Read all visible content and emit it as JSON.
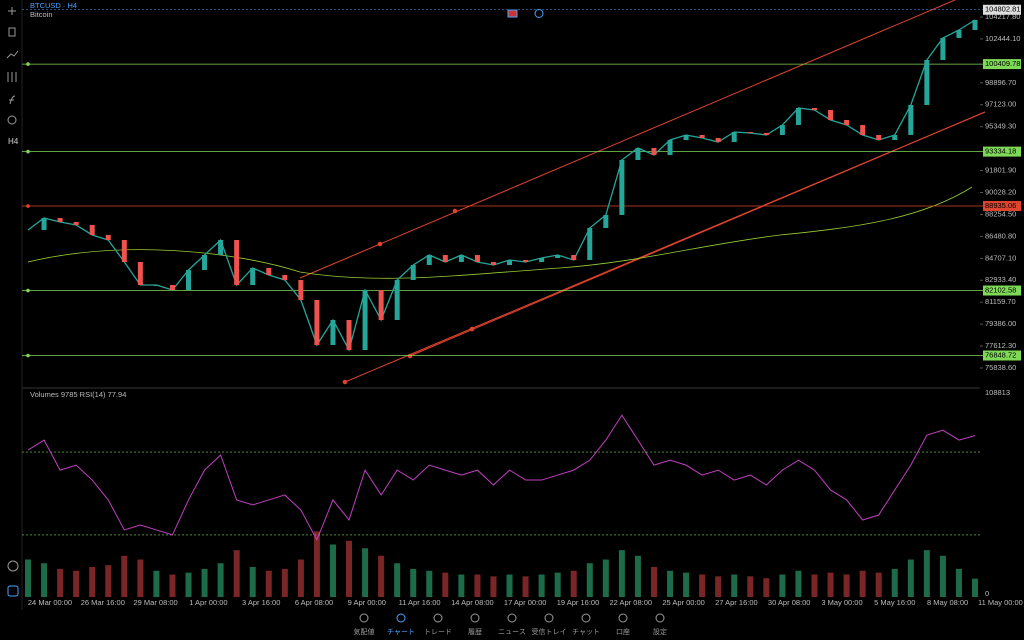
{
  "app": {
    "symbol": "BTCUSD · H4",
    "name": "Bitcoin",
    "sidebar_label": "H4",
    "nav": [
      "気配値",
      "チャート",
      "トレード",
      "履歴",
      "ニュース",
      "受信トレイ",
      "チャット",
      "口座",
      "設定"
    ],
    "active_nav": 1
  },
  "chart_data": {
    "type": "line",
    "color": "#26a69a",
    "xticks": [
      "24 Mar 00:00",
      "26 Mar 16:00",
      "29 Mar 08:00",
      "1 Apr 00:00",
      "3 Apr 16:00",
      "6 Apr 08:00",
      "9 Apr 00:00",
      "11 Apr 16:00",
      "14 Apr 08:00",
      "17 Apr 00:00",
      "19 Apr 16:00",
      "22 Apr 08:00",
      "25 Apr 00:00",
      "27 Apr 16:00",
      "30 Apr 08:00",
      "3 May 00:00",
      "5 May 16:00",
      "8 May 08:00",
      "11 May 00:00"
    ],
    "values": [
      86997,
      87967,
      87644,
      87401,
      86593,
      86188,
      84410,
      82550,
      82550,
      82146,
      83763,
      84976,
      86188,
      82550,
      83925,
      83359,
      82954,
      81337,
      77699,
      79720,
      77295,
      82146,
      79720,
      82954,
      84167,
      84976,
      84410,
      84976,
      84410,
      84167,
      84571,
      84410,
      84733,
      84976,
      84571,
      87159,
      88210,
      92656,
      93627,
      93061,
      94273,
      94678,
      94435,
      94112,
      94920,
      94839,
      94678,
      95486,
      96861,
      96699,
      95890,
      95486,
      94678,
      94273,
      94678,
      97103,
      100741,
      102520,
      103167,
      103975
    ],
    "ylim": [
      74222,
      105592
    ],
    "yticks": [
      {
        "value": 104217.8,
        "label": "104217.80"
      },
      {
        "value": 102444.1,
        "label": "102444.10"
      },
      {
        "value": 98896.7,
        "label": "98896.70"
      },
      {
        "value": 97123.0,
        "label": "97123.00"
      },
      {
        "value": 95349.3,
        "label": "95349.30"
      },
      {
        "value": 91801.9,
        "label": "91801.90"
      },
      {
        "value": 90028.2,
        "label": "90028.20"
      },
      {
        "value": 88254.5,
        "label": "88254.50"
      },
      {
        "value": 86480.8,
        "label": "86480.80"
      },
      {
        "value": 84707.1,
        "label": "84707.10"
      },
      {
        "value": 82933.4,
        "label": "82933.40"
      },
      {
        "value": 81159.7,
        "label": "81159.70"
      },
      {
        "value": 79386.0,
        "label": "79386.00"
      },
      {
        "value": 77612.3,
        "label": "77612.30"
      },
      {
        "value": 75838.6,
        "label": "75838.60"
      }
    ],
    "price_lines": [
      {
        "value": 100409.78,
        "label": "100409.78",
        "color": "#7ed957"
      },
      {
        "value": 93334.18,
        "label": "93334.18",
        "color": "#7ed957"
      },
      {
        "value": 88935.06,
        "label": "88935.06",
        "color": "#e0442e"
      },
      {
        "value": 82102.58,
        "label": "82102.58",
        "color": "#7ed957"
      },
      {
        "value": 76848.72,
        "label": "76848.72",
        "color": "#7ed957"
      }
    ],
    "last_price": {
      "value": 104802.81,
      "label": "104802.81"
    },
    "indicator_title": "Volumes",
    "volume_last": 9785,
    "rsi_title": "RSI(14)",
    "rsi_last": 77.94,
    "rsi_color": "#c040c0",
    "rsi": [
      71.0,
      75.8,
      61.3,
      63.7,
      56.5,
      46.9,
      32.4,
      34.8,
      32.4,
      30.0,
      46.9,
      61.3,
      68.6,
      46.9,
      44.5,
      46.9,
      49.3,
      42.0,
      27.6,
      46.9,
      37.2,
      61.3,
      49.3,
      61.3,
      56.5,
      63.7,
      61.3,
      58.9,
      61.3,
      54.1,
      61.3,
      56.5,
      56.5,
      58.9,
      61.3,
      66.1,
      75.8,
      87.8,
      75.8,
      63.7,
      66.1,
      63.7,
      58.9,
      61.3,
      56.5,
      58.9,
      54.1,
      61.3,
      66.1,
      61.3,
      51.7,
      46.9,
      37.2,
      39.6,
      51.7,
      63.7,
      78.2,
      80.6,
      75.8,
      77.94
    ],
    "rsi_ylim": [
      0,
      100
    ],
    "rsi_levels": [
      70,
      30
    ],
    "volumes": [
      20000,
      18000,
      15000,
      14000,
      16000,
      17000,
      22000,
      20000,
      14000,
      12000,
      13000,
      15000,
      18000,
      25000,
      16000,
      14000,
      15000,
      20000,
      35000,
      28000,
      30000,
      26000,
      22000,
      18000,
      15000,
      14000,
      13000,
      12000,
      12000,
      11000,
      12000,
      11000,
      12000,
      13000,
      14000,
      18000,
      20000,
      25000,
      22000,
      16000,
      14000,
      13000,
      12000,
      11000,
      12000,
      11000,
      10000,
      12000,
      14000,
      12000,
      13000,
      12000,
      14000,
      13000,
      15000,
      20000,
      25000,
      22000,
      15000,
      9785
    ],
    "volume_ylim": [
      0,
      108813
    ],
    "volume_ticks": [
      0,
      108813
    ]
  }
}
